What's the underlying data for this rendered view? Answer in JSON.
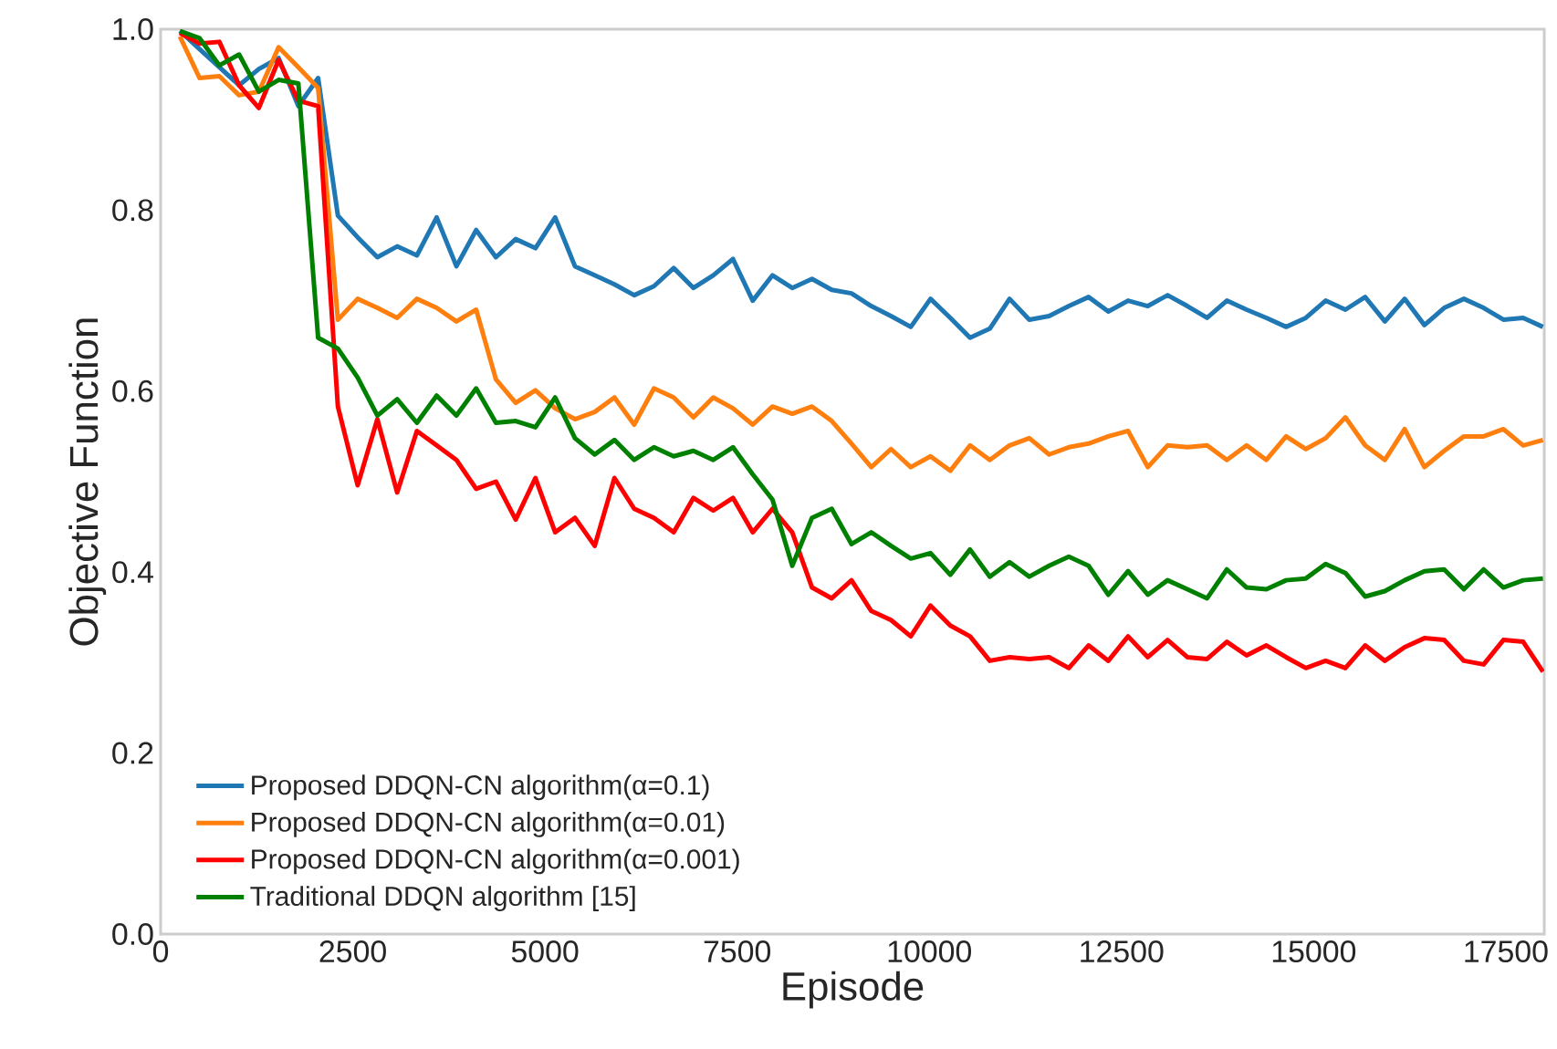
{
  "chart_data": {
    "type": "line",
    "xlabel": "Episode",
    "ylabel": "Objective Function",
    "x": [
      250,
      507,
      764,
      1021,
      1278,
      1535,
      1792,
      2049,
      2306,
      2563,
      2820,
      3077,
      3334,
      3591,
      3848,
      4105,
      4362,
      4619,
      4876,
      5133,
      5390,
      5647,
      5904,
      6161,
      6418,
      6675,
      6932,
      7189,
      7446,
      7703,
      7960,
      8217,
      8474,
      8731,
      8988,
      9245,
      9502,
      9759,
      10016,
      10273,
      10530,
      10787,
      11044,
      11301,
      11558,
      11815,
      12072,
      12329,
      12586,
      12843,
      13100,
      13357,
      13614,
      13871,
      14128,
      14385,
      14642,
      14899,
      15156,
      15413,
      15670,
      15927,
      16184,
      16441,
      16698,
      16955,
      17212,
      17469,
      17726,
      17983
    ],
    "series": [
      {
        "name": "Proposed DDQN-CN algorithm(α=0.1)",
        "color": "#1f77b4",
        "values": [
          0.998,
          0.978,
          0.958,
          0.938,
          0.956,
          0.968,
          0.915,
          0.946,
          0.794,
          0.77,
          0.748,
          0.76,
          0.75,
          0.792,
          0.738,
          0.778,
          0.748,
          0.768,
          0.758,
          0.792,
          0.738,
          0.728,
          0.718,
          0.706,
          0.716,
          0.736,
          0.714,
          0.728,
          0.746,
          0.7,
          0.728,
          0.714,
          0.724,
          0.712,
          0.708,
          0.694,
          0.683,
          0.671,
          0.702,
          0.681,
          0.659,
          0.669,
          0.702,
          0.679,
          0.683,
          0.694,
          0.704,
          0.688,
          0.7,
          0.694,
          0.706,
          0.694,
          0.681,
          0.7,
          0.69,
          0.681,
          0.671,
          0.681,
          0.7,
          0.69,
          0.704,
          0.677,
          0.702,
          0.673,
          0.692,
          0.702,
          0.692,
          0.679,
          0.681,
          0.671
        ]
      },
      {
        "name": "Proposed DDQN-CN algorithm(α=0.01)",
        "color": "#ff7f0e",
        "values": [
          0.992,
          0.946,
          0.948,
          0.927,
          0.931,
          0.98,
          0.958,
          0.935,
          0.679,
          0.702,
          0.692,
          0.681,
          0.702,
          0.692,
          0.677,
          0.69,
          0.613,
          0.587,
          0.601,
          0.581,
          0.569,
          0.577,
          0.593,
          0.563,
          0.603,
          0.593,
          0.571,
          0.593,
          0.581,
          0.563,
          0.583,
          0.575,
          0.583,
          0.567,
          0.542,
          0.516,
          0.536,
          0.516,
          0.528,
          0.512,
          0.54,
          0.524,
          0.54,
          0.548,
          0.53,
          0.538,
          0.542,
          0.55,
          0.556,
          0.516,
          0.54,
          0.538,
          0.54,
          0.524,
          0.54,
          0.524,
          0.55,
          0.536,
          0.548,
          0.571,
          0.54,
          0.524,
          0.558,
          0.516,
          0.534,
          0.55,
          0.55,
          0.558,
          0.54,
          0.546
        ]
      },
      {
        "name": "Proposed DDQN-CN algorithm(α=0.001)",
        "color": "#ff0000",
        "values": [
          0.996,
          0.984,
          0.986,
          0.938,
          0.913,
          0.966,
          0.921,
          0.915,
          0.583,
          0.496,
          0.569,
          0.488,
          0.556,
          0.54,
          0.524,
          0.492,
          0.5,
          0.458,
          0.504,
          0.444,
          0.46,
          0.429,
          0.504,
          0.47,
          0.46,
          0.444,
          0.482,
          0.468,
          0.482,
          0.444,
          0.47,
          0.444,
          0.383,
          0.371,
          0.391,
          0.357,
          0.347,
          0.329,
          0.363,
          0.341,
          0.329,
          0.302,
          0.306,
          0.304,
          0.306,
          0.294,
          0.319,
          0.302,
          0.329,
          0.306,
          0.325,
          0.306,
          0.304,
          0.323,
          0.308,
          0.319,
          0.306,
          0.294,
          0.302,
          0.294,
          0.319,
          0.302,
          0.317,
          0.327,
          0.325,
          0.302,
          0.298,
          0.325,
          0.323,
          0.29
        ]
      },
      {
        "name": "Traditional DDQN algorithm [15]",
        "color": "#008000",
        "values": [
          0.998,
          0.99,
          0.96,
          0.972,
          0.931,
          0.944,
          0.94,
          0.659,
          0.647,
          0.615,
          0.573,
          0.591,
          0.565,
          0.595,
          0.573,
          0.603,
          0.565,
          0.567,
          0.56,
          0.593,
          0.548,
          0.53,
          0.546,
          0.524,
          0.538,
          0.528,
          0.534,
          0.524,
          0.538,
          0.508,
          0.48,
          0.407,
          0.46,
          0.47,
          0.431,
          0.444,
          0.429,
          0.415,
          0.421,
          0.397,
          0.425,
          0.395,
          0.411,
          0.395,
          0.407,
          0.417,
          0.407,
          0.375,
          0.401,
          0.375,
          0.391,
          0.381,
          0.371,
          0.403,
          0.383,
          0.381,
          0.391,
          0.393,
          0.409,
          0.399,
          0.373,
          0.379,
          0.391,
          0.401,
          0.403,
          0.381,
          0.403,
          0.383,
          0.391,
          0.393
        ]
      }
    ],
    "xlim": [
      0,
      18000
    ],
    "ylim": [
      0,
      1.0
    ],
    "xticks": [
      0,
      2500,
      5000,
      7500,
      10000,
      12500,
      15000,
      17500
    ],
    "yticks": [
      {
        "value": 0,
        "label": "0.0"
      },
      {
        "value": 0.2,
        "label": "0.2"
      },
      {
        "value": 0.4,
        "label": "0.4"
      },
      {
        "value": 0.6,
        "label": "0.6"
      },
      {
        "value": 0.8,
        "label": "0.8"
      },
      {
        "value": 1.0,
        "label": "1.0"
      }
    ],
    "legend": "bottom left",
    "grid": false
  }
}
